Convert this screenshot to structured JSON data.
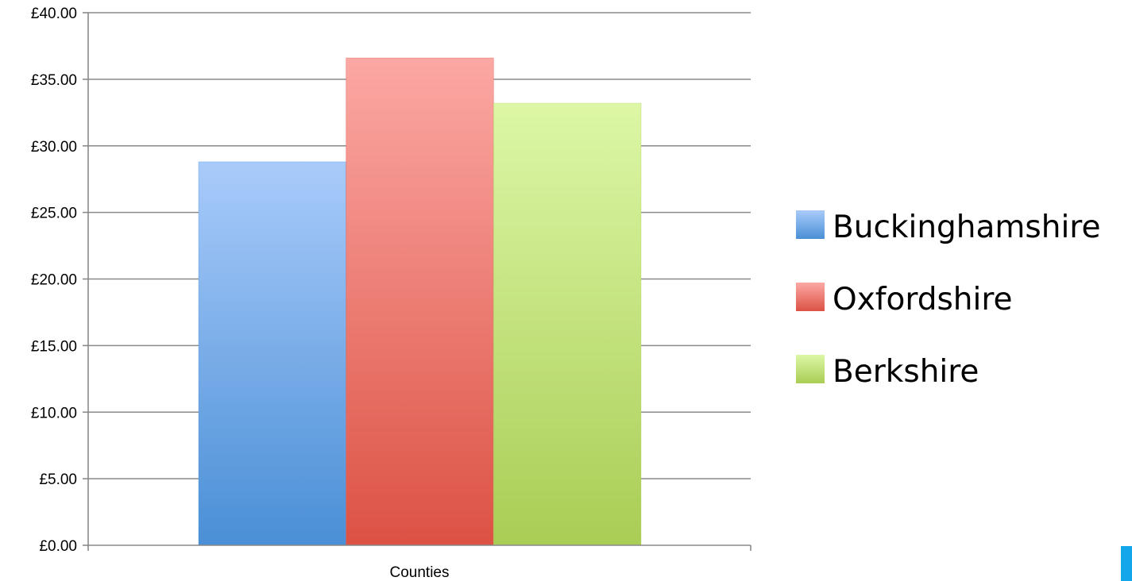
{
  "chart_data": {
    "type": "bar",
    "categories": [
      "Counties"
    ],
    "series": [
      {
        "name": "Buckinghamshire",
        "values": [
          28.8
        ],
        "color_top": "#a9cbfa",
        "color_bottom": "#4a8fd6"
      },
      {
        "name": "Oxfordshire",
        "values": [
          36.6
        ],
        "color_top": "#fca8a4",
        "color_bottom": "#dc5244"
      },
      {
        "name": "Berkshire",
        "values": [
          33.2
        ],
        "color_top": "#ddf7a6",
        "color_bottom": "#a9cd55"
      }
    ],
    "title": "",
    "xlabel": "",
    "ylabel": "",
    "ylim": [
      0,
      40
    ],
    "y_ticks": [
      0,
      5,
      10,
      15,
      20,
      25,
      30,
      35,
      40
    ],
    "y_tick_labels": [
      "£0.00",
      "£5.00",
      "£10.00",
      "£15.00",
      "£20.00",
      "£25.00",
      "£30.00",
      "£35.00",
      "£40.00"
    ],
    "grid": true,
    "legend_position": "right"
  },
  "colors": {
    "gridline": "#8a8a8a",
    "axis": "#8a8a8a",
    "corner_marker": "#13a6e8"
  }
}
